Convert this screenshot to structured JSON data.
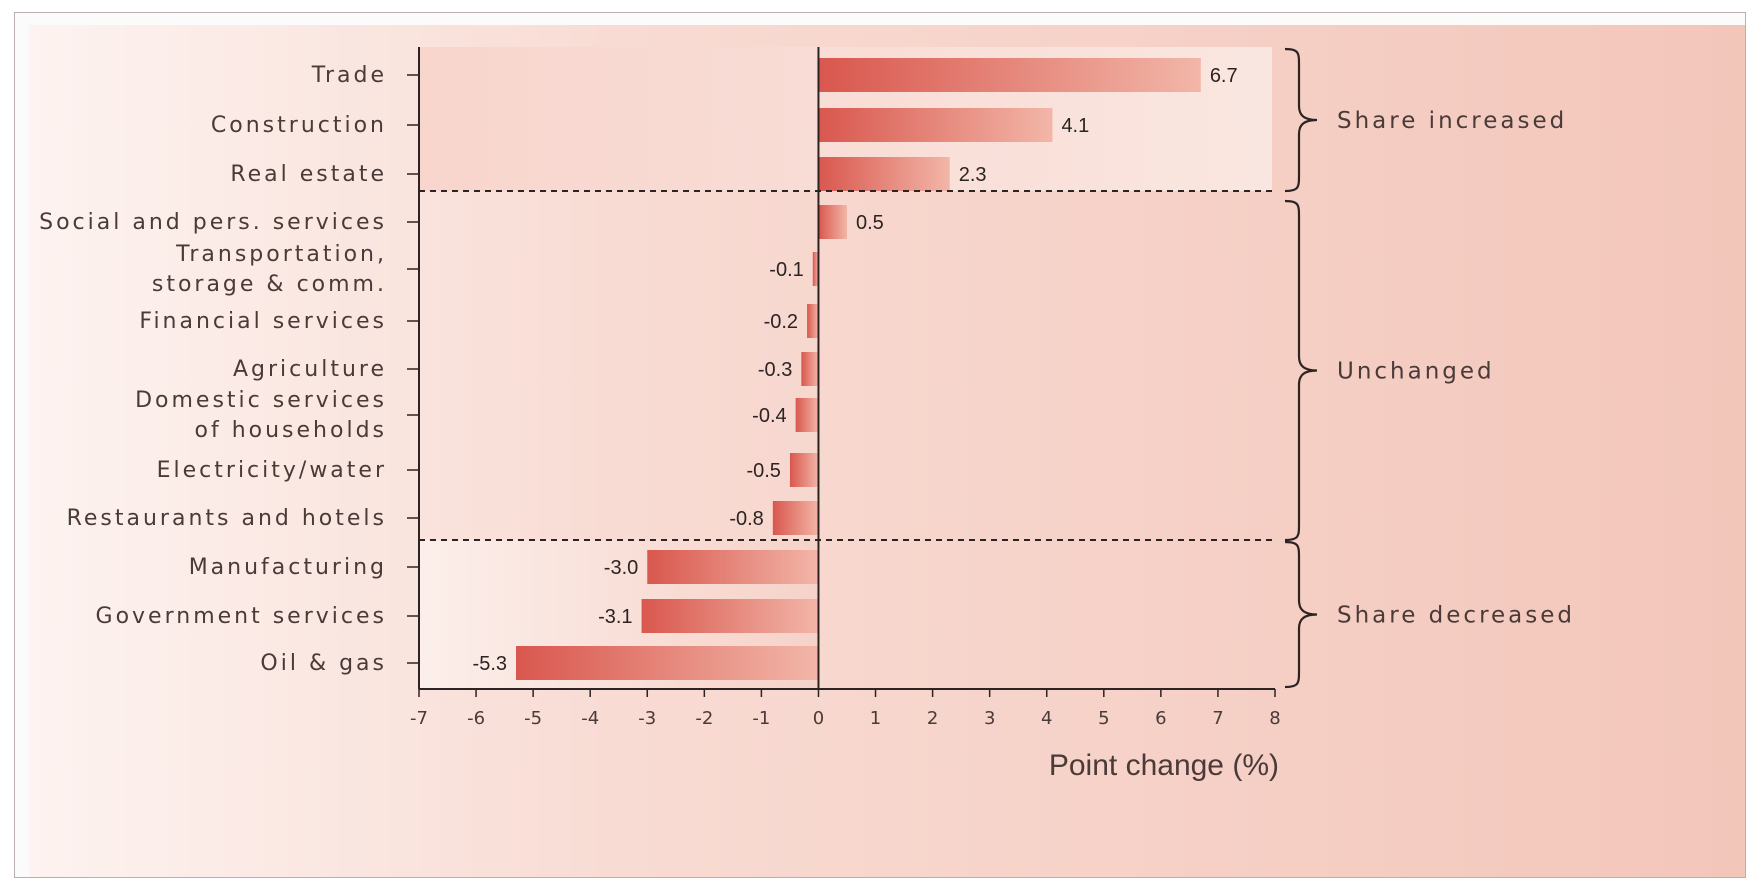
{
  "chart_data": {
    "type": "bar",
    "orientation": "horizontal",
    "title": "",
    "xlabel": "Point change (%)",
    "ylabel": "",
    "xlim": [
      -7,
      8
    ],
    "xticks": [
      -7,
      -6,
      -5,
      -4,
      -3,
      -2,
      -1,
      0,
      1,
      2,
      3,
      4,
      5,
      6,
      7,
      8
    ],
    "grid": false,
    "categories": [
      [
        "Trade"
      ],
      [
        "Construction"
      ],
      [
        "Real estate"
      ],
      [
        "Social and pers. services"
      ],
      [
        "Transportation,",
        "storage & comm."
      ],
      [
        "Financial services"
      ],
      [
        "Agriculture"
      ],
      [
        "Domestic services",
        "of households"
      ],
      [
        "Electricity/water"
      ],
      [
        "Restaurants and hotels"
      ],
      [
        "Manufacturing"
      ],
      [
        "Government services"
      ],
      [
        "Oil & gas"
      ]
    ],
    "values": [
      6.7,
      4.1,
      2.3,
      0.5,
      -0.1,
      -0.2,
      -0.3,
      -0.4,
      -0.5,
      -0.8,
      -3.0,
      -3.1,
      -5.3
    ],
    "value_labels": [
      "6.7",
      "4.1",
      "2.3",
      "0.5",
      "-0.1",
      "-0.2",
      "-0.3",
      "-0.4",
      "-0.5",
      "-0.8",
      "-3.0",
      "-3.1",
      "-5.3"
    ],
    "groups": [
      {
        "label": "Share increased",
        "from": 0,
        "to": 2
      },
      {
        "label": "Unchanged",
        "from": 3,
        "to": 9
      },
      {
        "label": "Share decreased",
        "from": 10,
        "to": 12
      }
    ],
    "colors": {
      "bar_dark": "#d9584f",
      "bar_light": "#f2b7aa",
      "background": "#f6cfc4",
      "axis": "#2c2322"
    }
  }
}
